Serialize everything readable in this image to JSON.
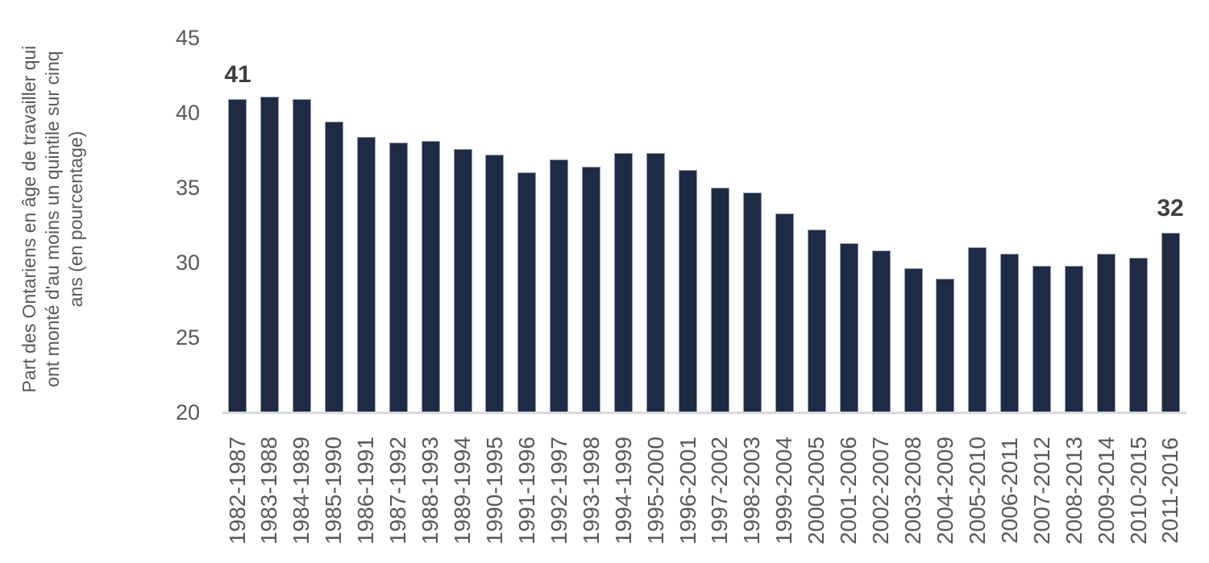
{
  "chart_data": {
    "type": "bar",
    "title": "",
    "ylabel": "Part des Ontariens en âge de travailler qui ont monté d'au moins un quintile sur cinq ans (en pourcentage)",
    "ylabel_lines": [
      "Part des Ontariens en âge de travailler qui",
      "ont monté d'au moins un quintile sur cinq",
      "ans (en pourcentage)"
    ],
    "xlabel": "",
    "categories": [
      "1982-1987",
      "1983-1988",
      "1984-1989",
      "1985-1990",
      "1986-1991",
      "1987-1992",
      "1988-1993",
      "1989-1994",
      "1990-1995",
      "1991-1996",
      "1992-1997",
      "1993-1998",
      "1994-1999",
      "1995-2000",
      "1996-2001",
      "1997-2002",
      "1998-2003",
      "1999-2004",
      "2000-2005",
      "2001-2006",
      "2002-2007",
      "2003-2008",
      "2004-2009",
      "2005-2010",
      "2006-2011",
      "2007-2012",
      "2008-2013",
      "2009-2014",
      "2010-2015",
      "2011-2016"
    ],
    "values": [
      40.9,
      41.1,
      40.9,
      39.4,
      38.4,
      38.0,
      38.1,
      37.6,
      37.2,
      36.0,
      36.9,
      36.4,
      37.3,
      37.3,
      36.2,
      35.0,
      34.7,
      33.3,
      32.2,
      31.3,
      30.8,
      29.6,
      28.9,
      31.0,
      30.6,
      29.8,
      29.8,
      30.6,
      30.3,
      32.0
    ],
    "annotations": [
      {
        "category": "1982-1987",
        "label": "41"
      },
      {
        "category": "2011-2016",
        "label": "32"
      }
    ],
    "ylim": [
      20,
      45
    ],
    "yticks": [
      20,
      25,
      30,
      35,
      40,
      45
    ],
    "grid": false,
    "legend": null,
    "colors": {
      "bar": "#1F2B45",
      "bar_edge": "#8d9cb2",
      "tick_label": "#595959",
      "data_label": "#3F3F3F",
      "axis_line": "#D9D9D9",
      "background": "#FFFFFF"
    }
  }
}
